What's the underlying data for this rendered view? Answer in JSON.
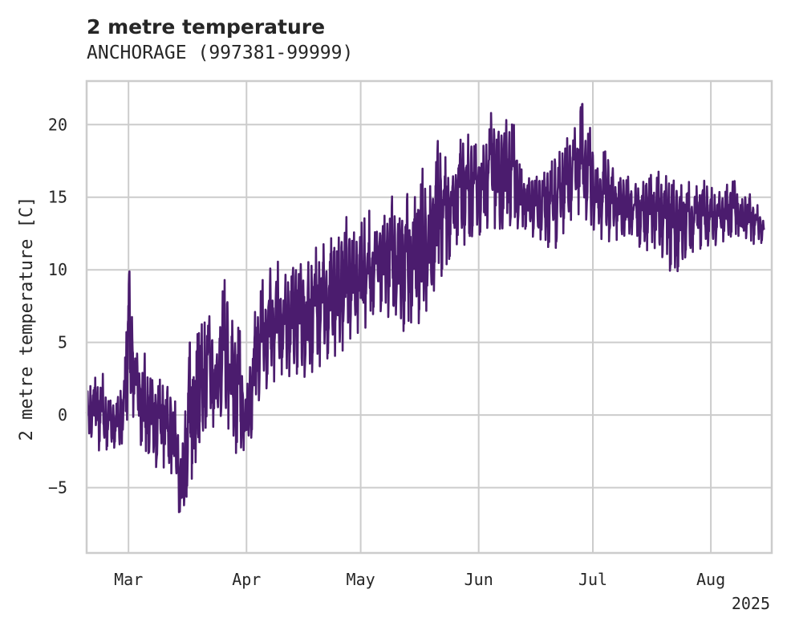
{
  "chart_data": {
    "type": "line",
    "title": "2 metre temperature",
    "subtitle": "ANCHORAGE (997381-99999)",
    "ylabel": "2 metre temperature [C]",
    "xlabel": "",
    "x_tick_labels": [
      "Mar",
      "Apr",
      "May",
      "Jun",
      "Jul",
      "Aug"
    ],
    "x_tick_dates": [
      "2025-03-01",
      "2025-04-01",
      "2025-05-01",
      "2025-06-01",
      "2025-07-01",
      "2025-08-01"
    ],
    "x_offset_label": "2025",
    "y_ticks": [
      -5,
      0,
      5,
      10,
      15,
      20
    ],
    "y_tick_labels": [
      "−5",
      "0",
      "5",
      "10",
      "15",
      "20"
    ],
    "xlim": [
      "2025-02-18",
      "2025-08-17"
    ],
    "ylim": [
      -9.5,
      23
    ],
    "grid": true,
    "series": [
      {
        "color": "#4b1c6e",
        "x": [
          "2025-02-18",
          "2025-02-20",
          "2025-02-22",
          "2025-02-24",
          "2025-02-26",
          "2025-02-28",
          "2025-03-01",
          "2025-03-03",
          "2025-03-05",
          "2025-03-07",
          "2025-03-09",
          "2025-03-11",
          "2025-03-13",
          "2025-03-15",
          "2025-03-17",
          "2025-03-18",
          "2025-03-19",
          "2025-03-20",
          "2025-03-22",
          "2025-03-24",
          "2025-03-26",
          "2025-03-28",
          "2025-03-30",
          "2025-04-01",
          "2025-04-03",
          "2025-04-05",
          "2025-04-07",
          "2025-04-09",
          "2025-04-11",
          "2025-04-13",
          "2025-04-15",
          "2025-04-17",
          "2025-04-19",
          "2025-04-21",
          "2025-04-23",
          "2025-04-25",
          "2025-04-27",
          "2025-04-29",
          "2025-05-01",
          "2025-05-03",
          "2025-05-05",
          "2025-05-07",
          "2025-05-09",
          "2025-05-11",
          "2025-05-13",
          "2025-05-15",
          "2025-05-17",
          "2025-05-19",
          "2025-05-21",
          "2025-05-23",
          "2025-05-25",
          "2025-05-27",
          "2025-05-29",
          "2025-05-31",
          "2025-06-02",
          "2025-06-04",
          "2025-06-06",
          "2025-06-08",
          "2025-06-10",
          "2025-06-12",
          "2025-06-14",
          "2025-06-16",
          "2025-06-18",
          "2025-06-20",
          "2025-06-22",
          "2025-06-24",
          "2025-06-26",
          "2025-06-28",
          "2025-06-30",
          "2025-07-02",
          "2025-07-04",
          "2025-07-06",
          "2025-07-08",
          "2025-07-10",
          "2025-07-12",
          "2025-07-14",
          "2025-07-16",
          "2025-07-18",
          "2025-07-20",
          "2025-07-22",
          "2025-07-24",
          "2025-07-26",
          "2025-07-28",
          "2025-07-30",
          "2025-08-01",
          "2025-08-03",
          "2025-08-05",
          "2025-08-07",
          "2025-08-09",
          "2025-08-11",
          "2025-08-13",
          "2025-08-15"
        ],
        "high": [
          1.5,
          2.5,
          3.1,
          1.0,
          1.0,
          3.0,
          10.7,
          4.2,
          4.5,
          2.4,
          2.5,
          2.0,
          1.5,
          -3.0,
          5.4,
          2.2,
          5.5,
          6.1,
          7.3,
          3.4,
          9.7,
          6.5,
          6.4,
          1.5,
          6.8,
          9.2,
          10.0,
          10.7,
          9.6,
          10.1,
          10.4,
          10.4,
          11.5,
          11.7,
          12.2,
          12.0,
          13.8,
          12.5,
          13.1,
          14.3,
          12.5,
          13.5,
          15.3,
          13.3,
          15.3,
          14.7,
          17.2,
          15.3,
          19.0,
          18.0,
          16.1,
          18.9,
          19.4,
          18.7,
          18.2,
          21.0,
          19.4,
          20.3,
          20.4,
          17.0,
          16.3,
          16.4,
          16.6,
          17.4,
          18.0,
          19.0,
          19.5,
          21.6,
          20.2,
          16.8,
          18.3,
          17.1,
          16.3,
          16.5,
          15.9,
          16.0,
          16.5,
          16.8,
          16.5,
          16.2,
          15.8,
          16.1,
          15.7,
          16.2,
          15.7,
          15.3,
          15.8,
          16.3,
          14.8,
          15.3,
          14.6,
          13.5
        ],
        "low": [
          -1.5,
          -1.5,
          -3.0,
          -2.0,
          -2.4,
          -1.7,
          0.5,
          -0.5,
          -3.0,
          -2.4,
          -4.3,
          -3.2,
          -4.5,
          -8.0,
          -4.2,
          -4.5,
          -2.5,
          -1.5,
          -0.5,
          -1.0,
          0.5,
          -1.8,
          -3.1,
          -2.0,
          -1.3,
          2.4,
          1.5,
          2.8,
          2.8,
          2.6,
          3.0,
          2.4,
          3.3,
          3.4,
          4.2,
          4.0,
          4.7,
          5.6,
          5.7,
          6.2,
          7.4,
          7.0,
          6.6,
          7.1,
          5.0,
          7.2,
          5.8,
          8.0,
          8.9,
          10.0,
          11.2,
          12.1,
          11.5,
          12.8,
          12.2,
          13.3,
          12.6,
          13.0,
          13.1,
          12.7,
          12.9,
          11.9,
          12.2,
          11.2,
          11.7,
          13.0,
          13.7,
          13.9,
          13.2,
          12.5,
          11.9,
          12.0,
          12.1,
          12.5,
          12.4,
          11.1,
          11.5,
          11.5,
          10.5,
          9.6,
          10.1,
          11.3,
          11.2,
          11.6,
          11.7,
          11.7,
          12.1,
          12.4,
          12.3,
          12.1,
          11.6,
          12.0
        ]
      }
    ]
  }
}
